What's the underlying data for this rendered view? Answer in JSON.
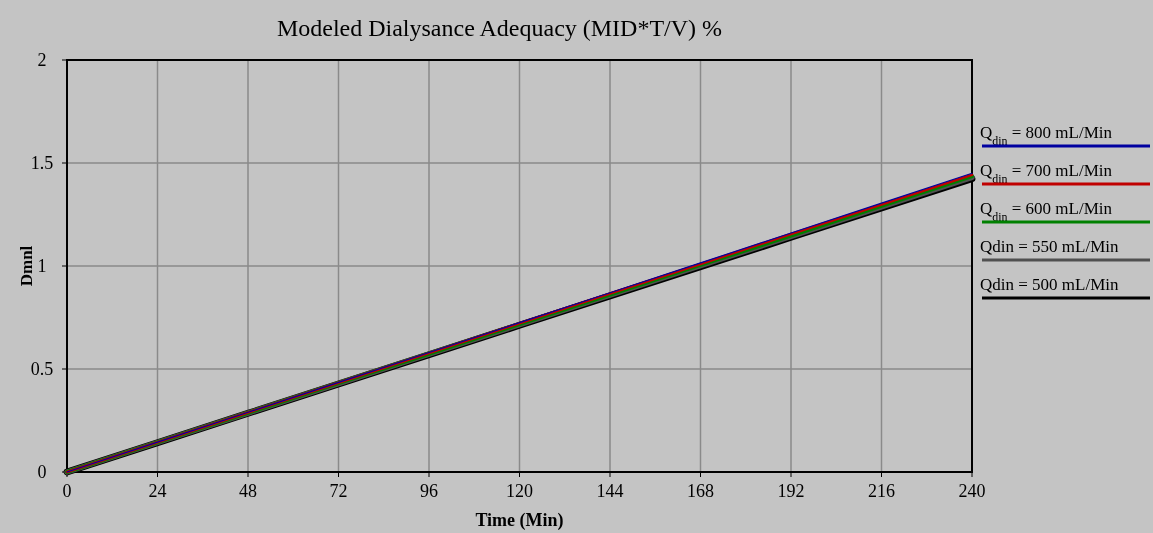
{
  "chart_data": {
    "type": "line",
    "title": "Modeled Dialysance Adequacy (MID*T/V) %",
    "xlabel": "Time (Min)",
    "ylabel": "Dmnl",
    "x": [
      0,
      24,
      48,
      72,
      96,
      120,
      144,
      168,
      192,
      216,
      240
    ],
    "series": [
      {
        "name": "Q$_{din}$ = 800 mL/Min",
        "color": "#0000a0",
        "values": [
          0,
          0.145,
          0.29,
          0.435,
          0.58,
          0.725,
          0.87,
          1.015,
          1.16,
          1.305,
          1.45
        ]
      },
      {
        "name": "Q$_{din}$ = 700 mL/Min",
        "color": "#c00000",
        "values": [
          0,
          0.144,
          0.289,
          0.433,
          0.577,
          0.722,
          0.866,
          1.01,
          1.155,
          1.299,
          1.443
        ]
      },
      {
        "name": "Q$_{din}$ = 600 mL/Min",
        "color": "#008000",
        "values": [
          0,
          0.144,
          0.287,
          0.431,
          0.574,
          0.718,
          0.861,
          1.005,
          1.148,
          1.292,
          1.436
        ]
      },
      {
        "name": "Qdin = 550 mL/Min",
        "color": "#505050",
        "values": [
          0,
          0.143,
          0.286,
          0.429,
          0.572,
          0.715,
          0.858,
          1.001,
          1.144,
          1.287,
          1.43
        ]
      },
      {
        "name": "Qdin = 500 mL/Min",
        "color": "#000000",
        "values": [
          0,
          0.142,
          0.285,
          0.427,
          0.569,
          0.712,
          0.854,
          0.996,
          1.139,
          1.281,
          1.423
        ]
      }
    ],
    "xlim": [
      0,
      240
    ],
    "xticks": [
      0,
      24,
      48,
      72,
      96,
      120,
      144,
      168,
      192,
      216,
      240
    ],
    "ylim": [
      0,
      2
    ],
    "yticks": [
      0,
      0.5,
      1,
      1.5,
      2
    ],
    "grid": true,
    "legend": "right",
    "line_style": "solid"
  }
}
